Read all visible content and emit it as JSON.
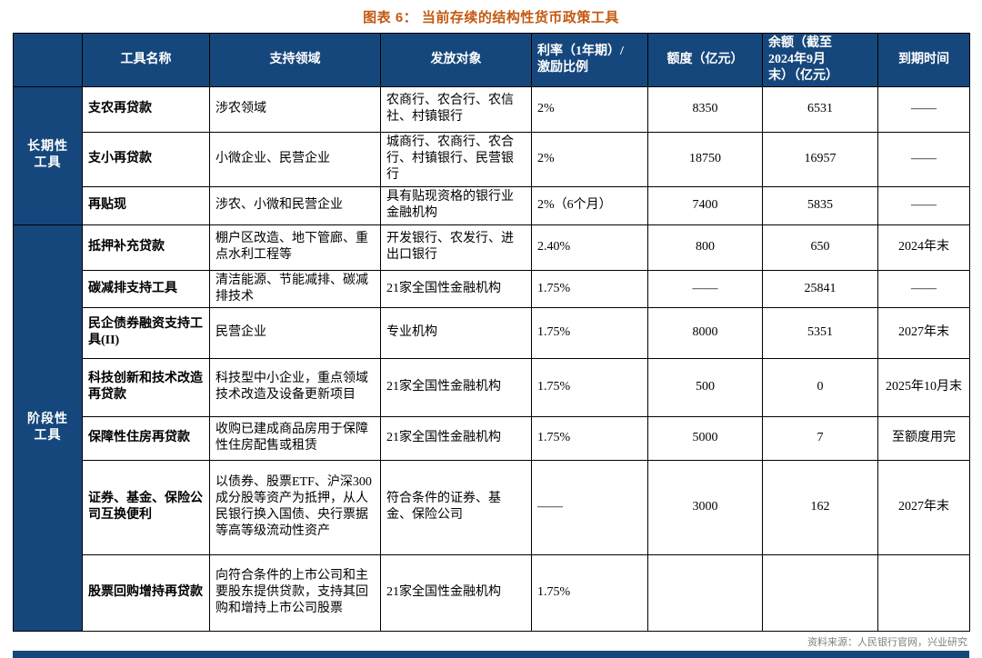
{
  "title": "图表 6：  当前存续的结构性货币政策工具",
  "source": "资料来源：人民银行官网，兴业研究",
  "colors": {
    "navy": "#16477C",
    "title_orange": "#C45911",
    "source_gray": "#808080",
    "border": "#000000",
    "header_text": "#FFFFFF"
  },
  "chart_data": {
    "type": "table",
    "title": "当前存续的结构性货币政策工具",
    "column_headers": [
      "工具名称",
      "支持领域",
      "发放对象",
      "利率（1年期）/\n激励比例",
      "额度（亿元）",
      "余额（截至\n2024年9月\n末）（亿元）",
      "到期时间"
    ],
    "row_groups": [
      {
        "name": "长期性\n工具",
        "rows": [
          {
            "tool": "支农再贷款",
            "area": "涉农领域",
            "target": "农商行、农合行、农信社、村镇银行",
            "rate": "2%",
            "quota": "8350",
            "balance": "6531",
            "maturity": "——"
          },
          {
            "tool": "支小再贷款",
            "area": "小微企业、民营企业",
            "target": "城商行、农商行、农合行、村镇银行、民营银行",
            "rate": "2%",
            "quota": "18750",
            "balance": "16957",
            "maturity": "——"
          },
          {
            "tool": "再贴现",
            "area": "涉农、小微和民营企业",
            "target": "具有贴现资格的银行业金融机构",
            "rate": "2%（6个月）",
            "quota": "7400",
            "balance": "5835",
            "maturity": "——"
          }
        ]
      },
      {
        "name": "阶段性\n工具",
        "rows": [
          {
            "tool": "抵押补充贷款",
            "area": "棚户区改造、地下管廊、重点水利工程等",
            "target": "开发银行、农发行、进出口银行",
            "rate": "2.40%",
            "quota": "800",
            "balance": "650",
            "maturity": "2024年末"
          },
          {
            "tool": "碳减排支持工具",
            "area": "清洁能源、节能减排、碳减排技术",
            "target": "21家全国性金融机构",
            "rate": "1.75%",
            "quota": "——",
            "balance": "25841",
            "maturity": "——"
          },
          {
            "tool": "民企债券融资支持工具(II)",
            "area": "民营企业",
            "target": "专业机构",
            "rate": "1.75%",
            "quota": "8000",
            "balance": "5351",
            "maturity": "2027年末"
          },
          {
            "tool": "科技创新和技术改造再贷款",
            "area": "科技型中小企业，重点领域技术改造及设备更新项目",
            "target": "21家全国性金融机构",
            "rate": "1.75%",
            "quota": "500",
            "balance": "0",
            "maturity": "2025年10月末"
          },
          {
            "tool": "保障性住房再贷款",
            "area": "收购已建成商品房用于保障性住房配售或租赁",
            "target": "21家全国性金融机构",
            "rate": "1.75%",
            "quota": "5000",
            "balance": "7",
            "maturity": "至额度用完"
          },
          {
            "tool": "证券、基金、保险公司互换便利",
            "area": "以债券、股票ETF、沪深300成分股等资产为抵押，从人民银行换入国债、央行票据等高等级流动性资产",
            "target": "符合条件的证券、基金、保险公司",
            "rate": "——",
            "quota": "3000",
            "balance": "162",
            "maturity": "2027年末"
          },
          {
            "tool": "股票回购增持再贷款",
            "area": "向符合条件的上市公司和主要股东提供贷款，支持其回购和增持上市公司股票",
            "target": "21家全国性金融机构",
            "rate": "1.75%",
            "quota": "",
            "balance": "",
            "maturity": ""
          }
        ]
      }
    ]
  }
}
